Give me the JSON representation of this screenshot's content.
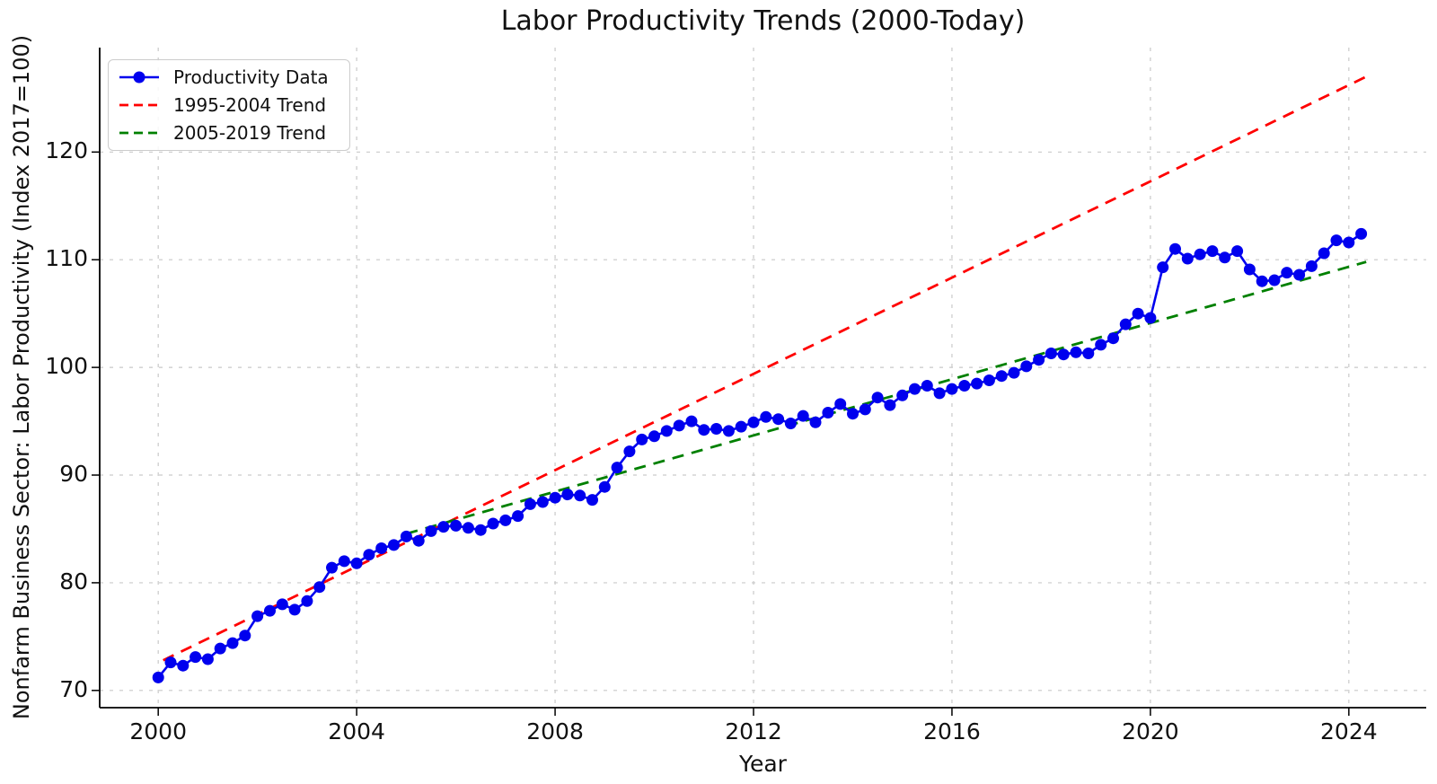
{
  "chart_data": {
    "type": "line",
    "title": "Labor Productivity Trends (2000-Today)",
    "xlabel": "Year",
    "ylabel": "Nonfarm Business Sector: Labor Productivity (Index 2017=100)",
    "xlim": [
      1998.82,
      2025.56
    ],
    "ylim": [
      68.4,
      129.7
    ],
    "x_ticks": [
      2000,
      2004,
      2008,
      2012,
      2016,
      2020,
      2024
    ],
    "y_ticks": [
      70,
      80,
      90,
      100,
      110,
      120
    ],
    "grid": true,
    "grid_color": "#c9c9c9",
    "legend_position": "upper left",
    "series": [
      {
        "name": "Productivity Data",
        "style": "solid-with-markers",
        "color": "#0000ee",
        "start_year": 2000,
        "period": 0.25,
        "values": [
          71.2,
          72.6,
          72.3,
          73.1,
          72.9,
          73.9,
          74.4,
          75.1,
          76.9,
          77.4,
          78.0,
          77.5,
          78.3,
          79.6,
          81.4,
          82.0,
          81.8,
          82.6,
          83.2,
          83.5,
          84.3,
          83.9,
          84.8,
          85.2,
          85.3,
          85.1,
          84.9,
          85.5,
          85.8,
          86.2,
          87.3,
          87.5,
          87.9,
          88.2,
          88.1,
          87.7,
          88.9,
          90.7,
          92.2,
          93.3,
          93.6,
          94.1,
          94.6,
          95.0,
          94.2,
          94.3,
          94.1,
          94.5,
          94.9,
          95.4,
          95.2,
          94.8,
          95.5,
          94.9,
          95.8,
          96.6,
          95.7,
          96.1,
          97.2,
          96.5,
          97.4,
          98.0,
          98.3,
          97.6,
          98.0,
          98.3,
          98.5,
          98.8,
          99.2,
          99.5,
          100.1,
          100.7,
          101.3,
          101.2,
          101.4,
          101.3,
          102.1,
          102.7,
          104.0,
          105.0,
          104.6,
          109.3,
          111.0,
          110.1,
          110.5,
          110.8,
          110.2,
          110.8,
          109.1,
          108.0,
          108.1,
          108.8,
          108.6,
          109.4,
          110.6,
          111.8,
          111.6,
          112.4
        ]
      },
      {
        "name": "1995-2004 Trend",
        "style": "dashed",
        "color": "#ff0000",
        "x": [
          2000.1,
          2024.35
        ],
        "y": [
          72.8,
          127.0
        ]
      },
      {
        "name": "2005-2019 Trend",
        "style": "dashed",
        "color": "#008000",
        "x": [
          2005.0,
          2024.35
        ],
        "y": [
          84.55,
          109.8
        ]
      }
    ]
  }
}
